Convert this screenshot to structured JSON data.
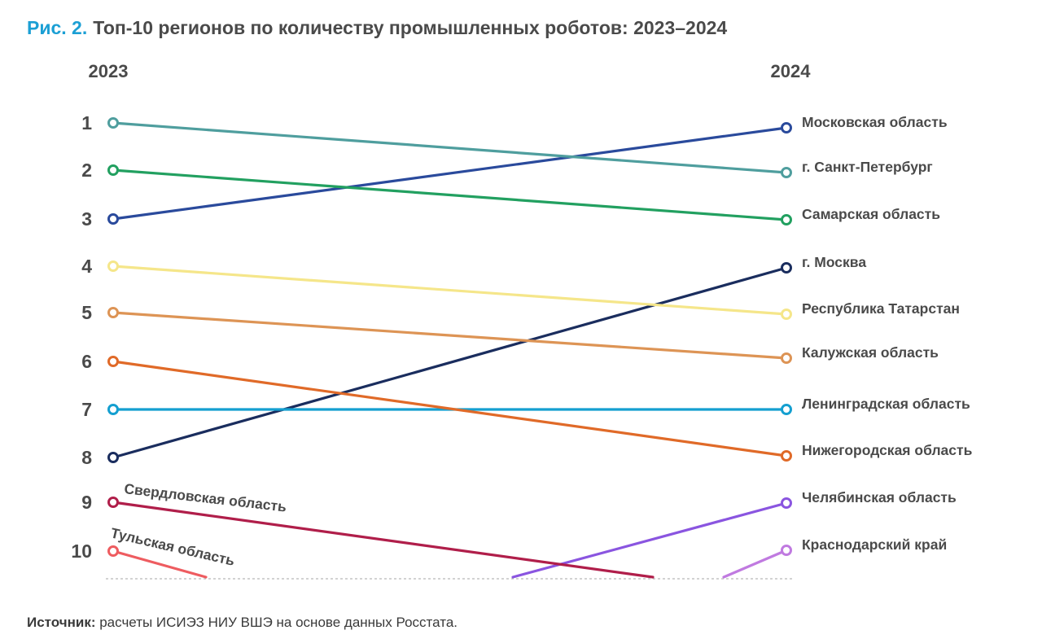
{
  "title": {
    "prefix": "Рис. 2.",
    "text": "Топ-10 регионов по количеству промышленных роботов: 2023–2024"
  },
  "source": {
    "label": "Источник:",
    "text": " расчеты ИСИЭЗ НИУ ВШЭ на основе данных Росстата."
  },
  "chart_data": {
    "type": "slope",
    "x": [
      "2023",
      "2024"
    ],
    "ranks": [
      1,
      2,
      3,
      4,
      5,
      6,
      7,
      8,
      9,
      10
    ],
    "series": [
      {
        "name": "Московская  область",
        "rank_2023": 3,
        "rank_2024": 1,
        "color": "#2a4a9c"
      },
      {
        "name": "г. Санкт-Петербург",
        "rank_2023": 1,
        "rank_2024": 2,
        "color": "#4f9e9e"
      },
      {
        "name": "Самарская область",
        "rank_2023": 2,
        "rank_2024": 3,
        "color": "#22a060"
      },
      {
        "name": "г. Москва",
        "rank_2023": 8,
        "rank_2024": 4,
        "color": "#1a2d5e"
      },
      {
        "name": "Республика Татарстан",
        "rank_2023": 4,
        "rank_2024": 5,
        "color": "#f5e68a"
      },
      {
        "name": "Калужская область",
        "rank_2023": 5,
        "rank_2024": 6,
        "color": "#dd9455"
      },
      {
        "name": "Ленинградская область",
        "rank_2023": 7,
        "rank_2024": 7,
        "color": "#149fd0"
      },
      {
        "name": "Нижегородская область",
        "rank_2023": 6,
        "rank_2024": 8,
        "color": "#e06a28"
      },
      {
        "name": "Челябинская область",
        "rank_2023": null,
        "rank_2024": 9,
        "color": "#8a55e0"
      },
      {
        "name": "Краснодарский край",
        "rank_2023": null,
        "rank_2024": 10,
        "color": "#c07ae0"
      },
      {
        "name": "Свердловская область",
        "rank_2023": 9,
        "rank_2024": null,
        "color": "#b01e4a"
      },
      {
        "name": "Тульская область",
        "rank_2023": 10,
        "rank_2024": null,
        "color": "#ee5c60"
      }
    ]
  }
}
